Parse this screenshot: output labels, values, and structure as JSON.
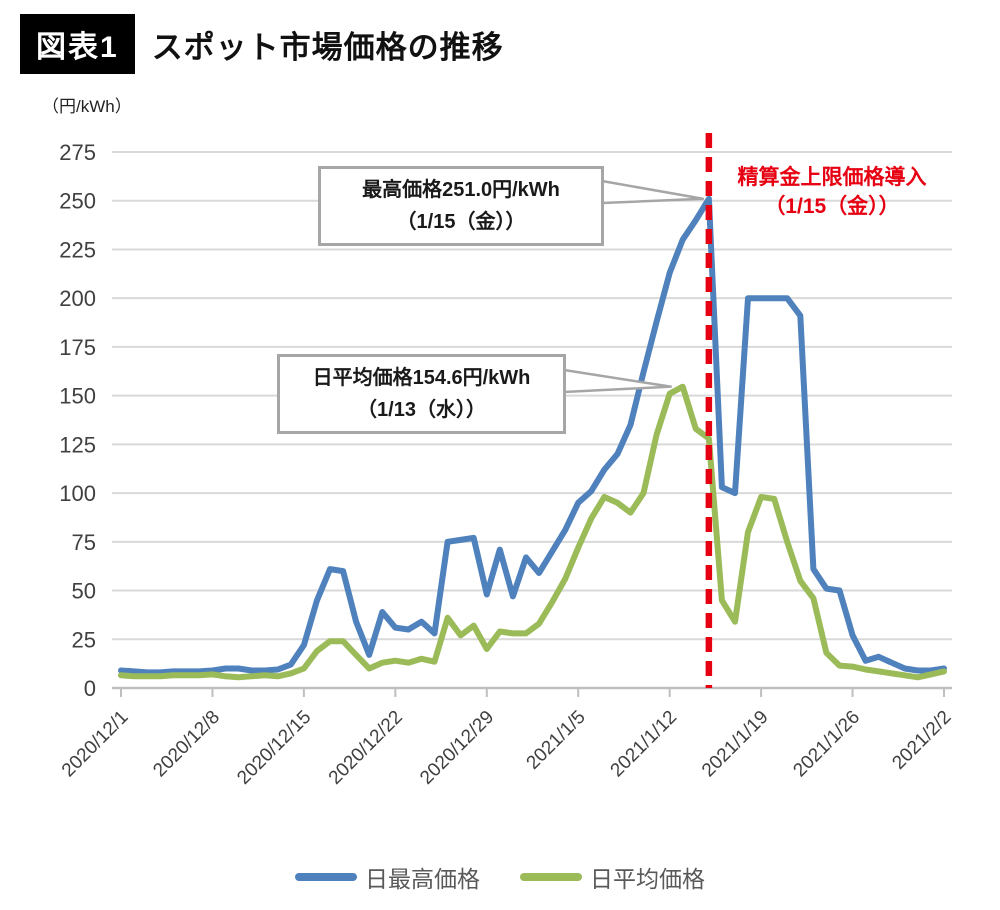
{
  "header": {
    "badge": "図表1",
    "title": "スポット市場価格の推移"
  },
  "chart_data": {
    "type": "line",
    "title": "スポット市場価格の推移",
    "ylabel": "（円/kWh）",
    "xlabel": "",
    "ylim": [
      0,
      275
    ],
    "ytick_step": 25,
    "grid": true,
    "legend_position": "bottom",
    "x": [
      "2020/12/1",
      "2020/12/2",
      "2020/12/3",
      "2020/12/4",
      "2020/12/5",
      "2020/12/6",
      "2020/12/7",
      "2020/12/8",
      "2020/12/9",
      "2020/12/10",
      "2020/12/11",
      "2020/12/12",
      "2020/12/13",
      "2020/12/14",
      "2020/12/15",
      "2020/12/16",
      "2020/12/17",
      "2020/12/18",
      "2020/12/19",
      "2020/12/20",
      "2020/12/21",
      "2020/12/22",
      "2020/12/23",
      "2020/12/24",
      "2020/12/25",
      "2020/12/26",
      "2020/12/27",
      "2020/12/28",
      "2020/12/29",
      "2020/12/30",
      "2020/12/31",
      "2021/1/1",
      "2021/1/2",
      "2021/1/3",
      "2021/1/4",
      "2021/1/5",
      "2021/1/6",
      "2021/1/7",
      "2021/1/8",
      "2021/1/9",
      "2021/1/10",
      "2021/1/11",
      "2021/1/12",
      "2021/1/13",
      "2021/1/14",
      "2021/1/15",
      "2021/1/16",
      "2021/1/17",
      "2021/1/18",
      "2021/1/19",
      "2021/1/20",
      "2021/1/21",
      "2021/1/22",
      "2021/1/23",
      "2021/1/24",
      "2021/1/25",
      "2021/1/26",
      "2021/1/27",
      "2021/1/28",
      "2021/1/29",
      "2021/1/30",
      "2021/1/31",
      "2021/2/1",
      "2021/2/2"
    ],
    "x_tick_labels": [
      "2020/12/1",
      "2020/12/8",
      "2020/12/15",
      "2020/12/22",
      "2020/12/29",
      "2021/1/5",
      "2021/1/12",
      "2021/1/19",
      "2021/1/26",
      "2021/2/2"
    ],
    "series": [
      {
        "name": "日最高価格",
        "color": "#4f81bd",
        "values": [
          9,
          8.5,
          8,
          8,
          8.5,
          8.5,
          8.5,
          9,
          10,
          10,
          9,
          9,
          9.5,
          12,
          22,
          45,
          61,
          60,
          34,
          17,
          39,
          31,
          30,
          34,
          28,
          75,
          76,
          77,
          48,
          71,
          47,
          67,
          59,
          70,
          81,
          95,
          101,
          112,
          120,
          135,
          162,
          188,
          213,
          230,
          240,
          251,
          103,
          100,
          200,
          200,
          200,
          200,
          191,
          61,
          51,
          50,
          27,
          14,
          16,
          13,
          10,
          9,
          9,
          10
        ]
      },
      {
        "name": "日平均価格",
        "color": "#9bbb59",
        "values": [
          6.5,
          6,
          6,
          6,
          6.5,
          6.5,
          6.5,
          7,
          6,
          5.5,
          6,
          6.5,
          6,
          7.5,
          10,
          19,
          24,
          24,
          17,
          10,
          13,
          14,
          13,
          15,
          13.5,
          36,
          27,
          32,
          20,
          29,
          28,
          28,
          33,
          44,
          56,
          72,
          87,
          98,
          95,
          90,
          100,
          130,
          151,
          154.6,
          133,
          128,
          45,
          34,
          80,
          98,
          97,
          75,
          55,
          46,
          18,
          11.5,
          11,
          9.5,
          8.5,
          7.5,
          6.5,
          5.5,
          7,
          8.5
        ]
      }
    ],
    "annotations": {
      "max_callout": {
        "line1": "最高価格251.0円/kWh",
        "line2": "（1/15（金））",
        "date": "2021/1/15",
        "value": 251.0
      },
      "avg_callout": {
        "line1": "日平均価格154.6円/kWh",
        "line2": "（1/13（水））",
        "date": "2021/1/13",
        "value": 154.6
      },
      "event_line": {
        "label_line1": "精算金上限価格導入",
        "label_line2": "（1/15（金））",
        "date": "2021/1/15",
        "color": "#e60012"
      }
    }
  }
}
